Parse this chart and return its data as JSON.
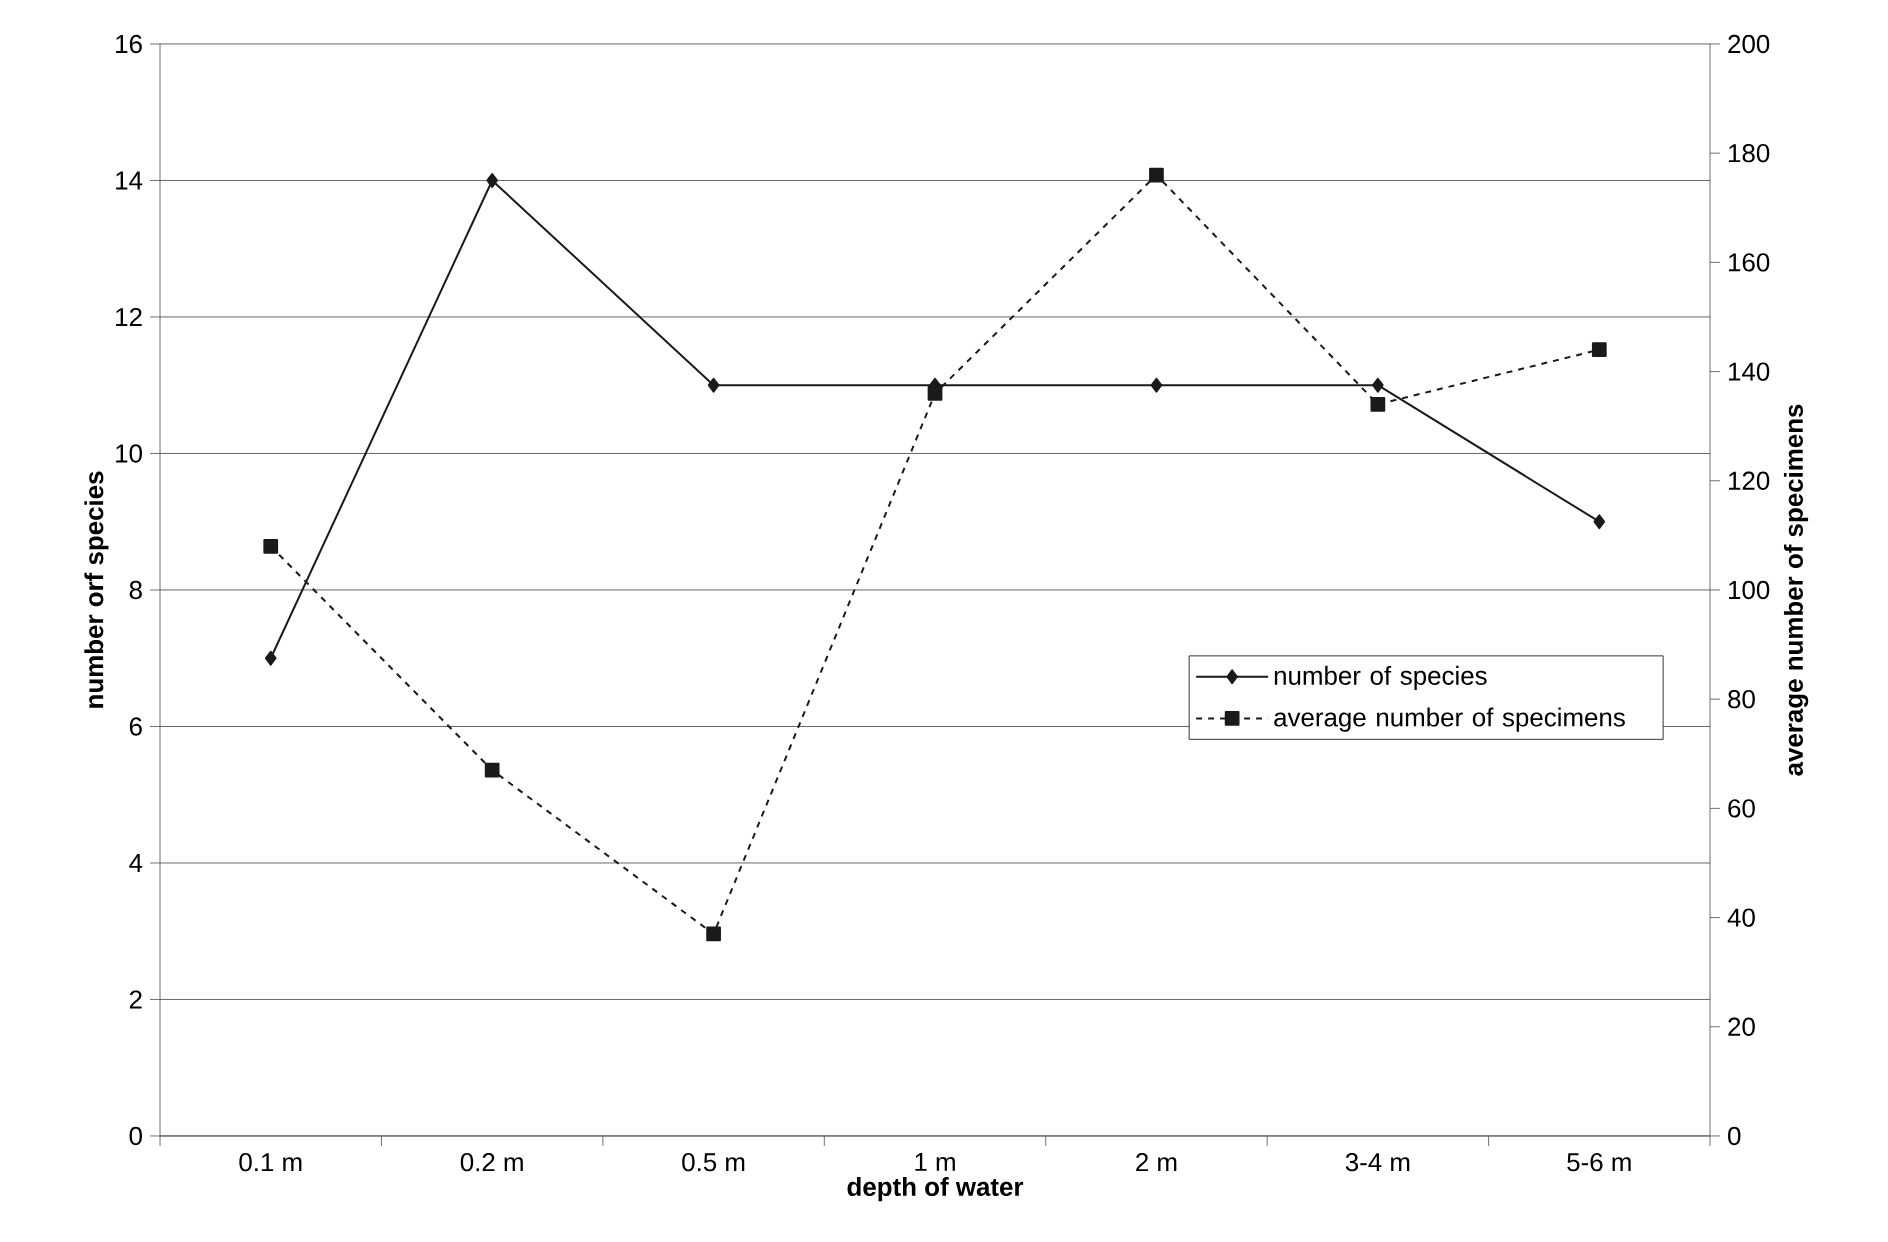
{
  "chart_data": {
    "type": "line",
    "xlabel": "depth of water",
    "ylabel": "number orf species",
    "y2label": "average number of specimens",
    "categories": [
      "0.1 m",
      "0.2 m",
      "0.5 m",
      "1 m",
      "2 m",
      "3-4 m",
      "5-6 m"
    ],
    "series": [
      {
        "name": "number of species",
        "color": "#1a1a1a",
        "marker": "diamond",
        "line_style": "solid",
        "values": [
          7,
          14,
          11,
          11,
          11,
          11,
          9
        ]
      },
      {
        "name": "average number of specimens",
        "color": "#1a1a1a",
        "marker": "square",
        "line_style": "dashed",
        "axis": "y2",
        "values": [
          108,
          67,
          37,
          136,
          176,
          134,
          144
        ]
      }
    ],
    "ylim": [
      0,
      16
    ],
    "yticks": [
      0,
      2,
      4,
      6,
      8,
      10,
      12,
      14,
      16
    ],
    "y2lim": [
      0,
      200
    ],
    "y2ticks": [
      0,
      20,
      40,
      60,
      80,
      100,
      120,
      140,
      160,
      180,
      200
    ],
    "grid": "y",
    "legend": "right"
  }
}
